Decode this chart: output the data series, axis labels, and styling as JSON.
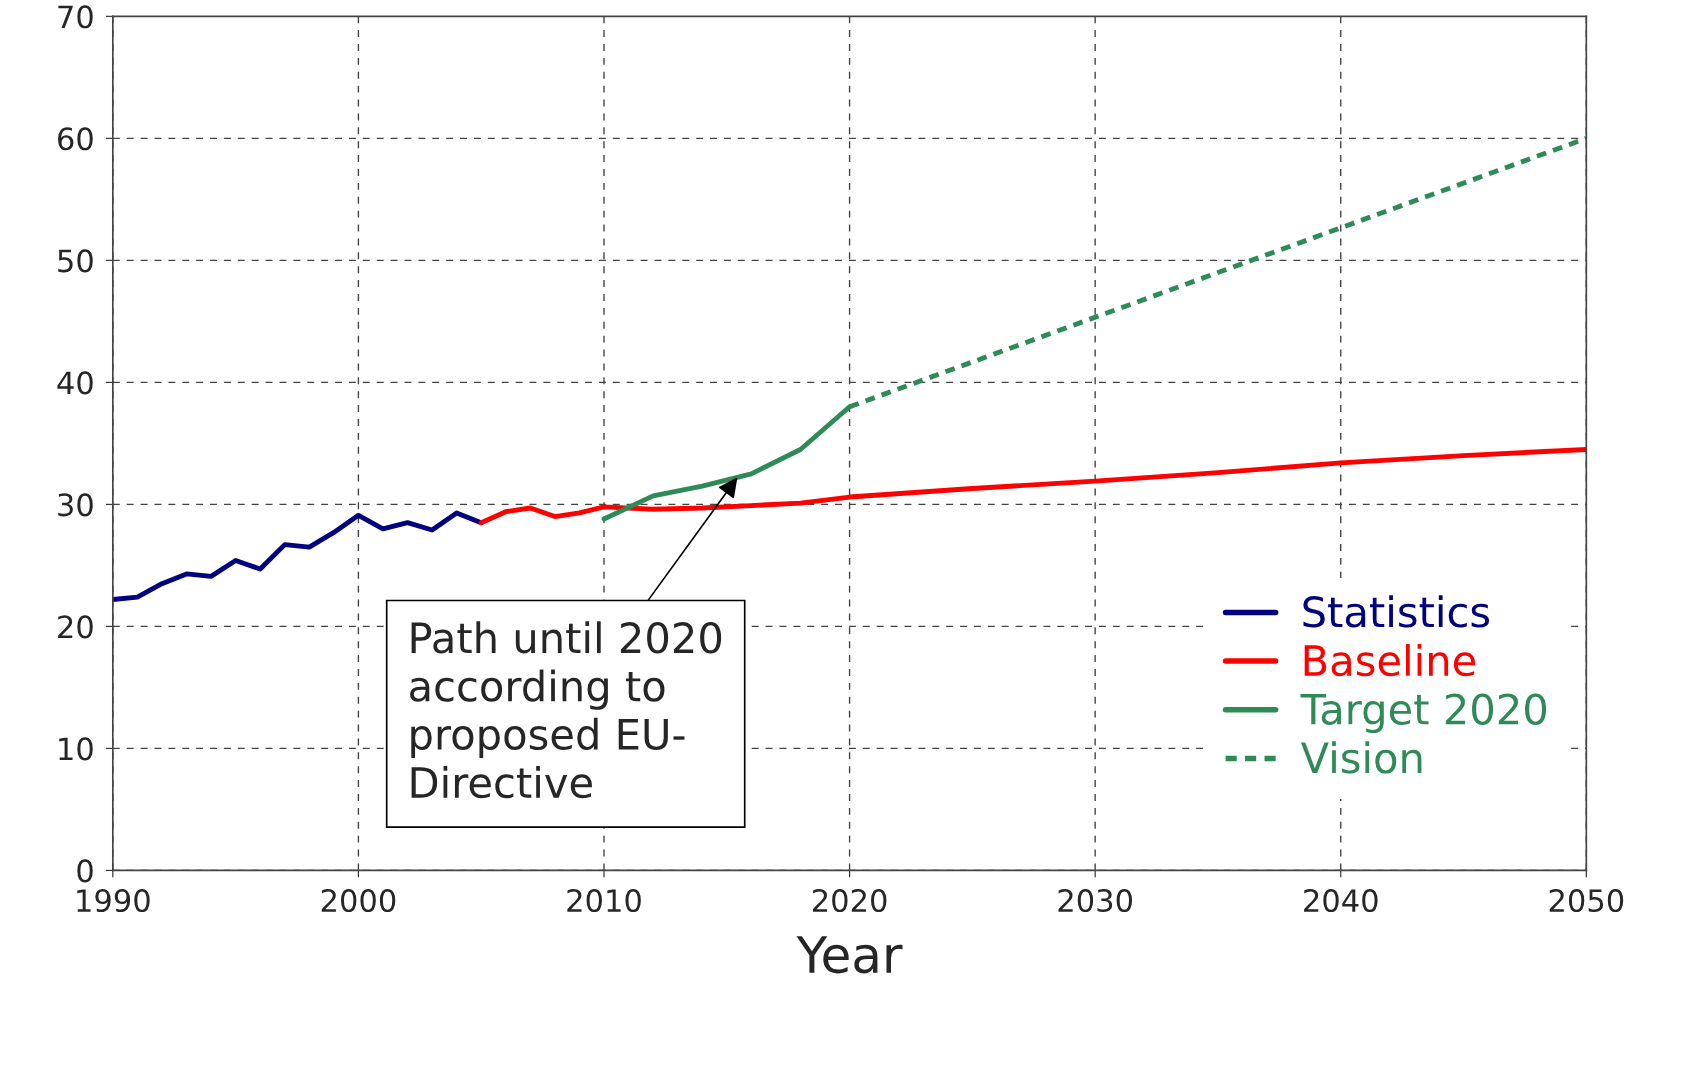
{
  "chart_data": {
    "type": "line",
    "xlabel": "Year",
    "xlim": [
      1990,
      2050
    ],
    "xticks": [
      1990,
      2000,
      2010,
      2020,
      2030,
      2040,
      2050
    ],
    "ylim": [
      0,
      70
    ],
    "yticks": [
      0,
      10,
      20,
      30,
      40,
      50,
      60,
      70
    ],
    "grid": true,
    "legend": "bottom right",
    "line_style": "solid",
    "marker": "none",
    "series": [
      {
        "name": "Statistics",
        "color": "#000080",
        "x": [
          1990,
          1991,
          1992,
          1993,
          1994,
          1995,
          1996,
          1997,
          1998,
          1999,
          2000,
          2001,
          2002,
          2003,
          2004,
          2005
        ],
        "values": [
          22.2,
          22.4,
          23.5,
          24.3,
          24.1,
          25.4,
          24.7,
          26.7,
          26.5,
          27.7,
          29.1,
          28.0,
          28.5,
          27.9,
          29.3,
          28.5
        ]
      },
      {
        "name": "Baseline",
        "color": "#ff0000",
        "x": [
          2005,
          2006,
          2007,
          2008,
          2009,
          2010,
          2012,
          2014,
          2016,
          2018,
          2020,
          2025,
          2030,
          2035,
          2040,
          2045,
          2050
        ],
        "values": [
          28.5,
          29.4,
          29.7,
          29.0,
          29.3,
          29.8,
          29.6,
          29.7,
          29.9,
          30.1,
          30.6,
          31.3,
          31.9,
          32.6,
          33.4,
          34.0,
          34.5
        ]
      },
      {
        "name": "Target 2020",
        "color": "#2e8b57",
        "x": [
          2010,
          2012,
          2014,
          2016,
          2018,
          2020
        ],
        "values": [
          28.8,
          30.7,
          31.5,
          32.5,
          34.5,
          38.0
        ]
      },
      {
        "name": "Vision",
        "color": "#2e8b57",
        "line_style": "dotted",
        "x": [
          2020,
          2050
        ],
        "values": [
          38.0,
          60.0
        ]
      }
    ],
    "annotations": [
      {
        "text": "Path until 2020\naccording to\nproposed EU-\nDirective",
        "x": 2015.5,
        "y": 32.4
      }
    ]
  }
}
